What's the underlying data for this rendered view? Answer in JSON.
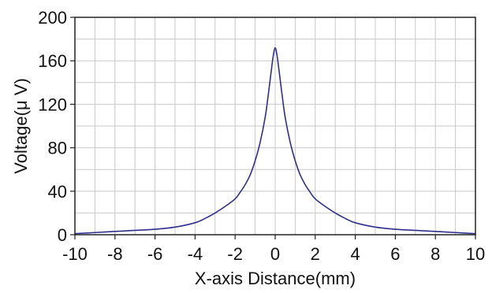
{
  "chart_data": {
    "type": "line",
    "title": "",
    "xlabel": "X-axis Distance(mm)",
    "ylabel": "Voltage(μ V)",
    "xlim": [
      -10,
      10
    ],
    "ylim": [
      0,
      200
    ],
    "x_ticks": [
      -10,
      -8,
      -6,
      -4,
      -2,
      0,
      2,
      4,
      6,
      8,
      10
    ],
    "x_tick_labels": [
      "-10",
      "-8",
      "-6",
      "-4",
      "-2",
      "0",
      "2",
      "4",
      "6",
      "8",
      "10"
    ],
    "y_ticks": [
      0,
      40,
      80,
      120,
      160,
      200
    ],
    "y_tick_labels": [
      "0",
      "40",
      "80",
      "120",
      "160",
      "200"
    ],
    "grid": true,
    "legend": "none",
    "line_color": "#2e2f8c",
    "series": [
      {
        "x": [
          -10,
          -9,
          -8,
          -7,
          -6,
          -5,
          -4,
          -3.5,
          -3,
          -2.5,
          -2,
          -1.75,
          -1.5,
          -1.25,
          -1,
          -0.75,
          -0.5,
          -0.35,
          -0.2,
          -0.1,
          0,
          0.1,
          0.2,
          0.35,
          0.5,
          0.75,
          1,
          1.25,
          1.5,
          1.75,
          2,
          2.5,
          3,
          3.5,
          4,
          5,
          6,
          7,
          8,
          9,
          10
        ],
        "y": [
          1,
          2,
          3,
          4,
          5,
          7,
          11,
          15,
          20,
          26,
          33,
          39,
          46,
          55,
          68,
          85,
          108,
          128,
          150,
          164,
          172,
          164,
          150,
          128,
          108,
          85,
          68,
          55,
          46,
          39,
          33,
          26,
          20,
          15,
          11,
          7,
          5,
          4,
          3,
          2,
          1
        ]
      }
    ]
  }
}
